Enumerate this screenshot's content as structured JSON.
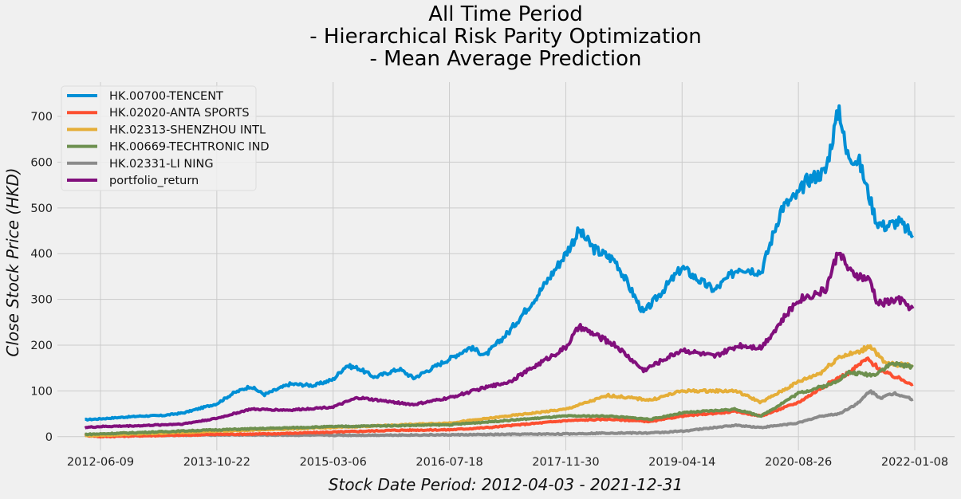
{
  "chart_data": {
    "type": "line",
    "title": [
      "All Time Period",
      "- Hierarchical Risk Parity Optimization",
      "- Mean Average Prediction"
    ],
    "xlabel": "Stock Date Period: 2012-04-03 - 2021-12-31",
    "ylabel": "Close Stock Price (HKD)",
    "x_start": "2012-04-03",
    "x_end": "2021-12-31",
    "x_ticks": [
      "2012-06-09",
      "2013-10-22",
      "2015-03-06",
      "2016-07-18",
      "2017-11-30",
      "2019-04-14",
      "2020-08-26",
      "2022-01-08"
    ],
    "y_ticks": [
      0,
      100,
      200,
      300,
      400,
      500,
      600,
      700
    ],
    "ylim": [
      -30,
      775
    ],
    "grid": true,
    "legend_position": "upper-left",
    "series": [
      {
        "name": "HK.00700-TENCENT",
        "color": "#008fd5",
        "points": [
          [
            "2012-04-03",
            37
          ],
          [
            "2012-06-09",
            39
          ],
          [
            "2012-09-01",
            42
          ],
          [
            "2012-12-01",
            45
          ],
          [
            "2013-03-01",
            46
          ],
          [
            "2013-06-01",
            52
          ],
          [
            "2013-10-22",
            72
          ],
          [
            "2014-01-01",
            95
          ],
          [
            "2014-03-15",
            110
          ],
          [
            "2014-05-15",
            92
          ],
          [
            "2014-09-01",
            115
          ],
          [
            "2014-12-15",
            112
          ],
          [
            "2015-03-06",
            125
          ],
          [
            "2015-05-01",
            155
          ],
          [
            "2015-06-20",
            150
          ],
          [
            "2015-09-01",
            130
          ],
          [
            "2015-12-15",
            148
          ],
          [
            "2016-02-15",
            128
          ],
          [
            "2016-07-18",
            170
          ],
          [
            "2016-10-15",
            195
          ],
          [
            "2016-12-20",
            178
          ],
          [
            "2017-04-01",
            230
          ],
          [
            "2017-08-01",
            310
          ],
          [
            "2017-11-30",
            400
          ],
          [
            "2018-01-26",
            450
          ],
          [
            "2018-04-01",
            410
          ],
          [
            "2018-07-01",
            385
          ],
          [
            "2018-10-30",
            270
          ],
          [
            "2018-12-20",
            300
          ],
          [
            "2019-04-14",
            370
          ],
          [
            "2019-07-01",
            340
          ],
          [
            "2019-09-01",
            320
          ],
          [
            "2019-12-15",
            370
          ],
          [
            "2020-03-19",
            360
          ],
          [
            "2020-06-15",
            500
          ],
          [
            "2020-08-26",
            530
          ],
          [
            "2020-10-01",
            560
          ],
          [
            "2020-12-20",
            580
          ],
          [
            "2021-02-17",
            720
          ],
          [
            "2021-03-20",
            620
          ],
          [
            "2021-05-15",
            600
          ],
          [
            "2021-07-28",
            470
          ],
          [
            "2021-09-01",
            460
          ],
          [
            "2021-11-01",
            470
          ],
          [
            "2021-12-31",
            440
          ]
        ]
      },
      {
        "name": "HK.02020-ANTA SPORTS",
        "color": "#fc4f30",
        "points": [
          [
            "2012-04-03",
            3
          ],
          [
            "2012-06-09",
            0
          ],
          [
            "2012-12-01",
            2
          ],
          [
            "2013-06-01",
            3
          ],
          [
            "2013-10-22",
            5
          ],
          [
            "2014-06-01",
            6
          ],
          [
            "2015-03-06",
            10
          ],
          [
            "2015-12-01",
            14
          ],
          [
            "2016-07-18",
            15
          ],
          [
            "2017-01-01",
            20
          ],
          [
            "2017-11-30",
            35
          ],
          [
            "2018-06-01",
            38
          ],
          [
            "2018-12-01",
            33
          ],
          [
            "2019-04-14",
            45
          ],
          [
            "2019-12-01",
            55
          ],
          [
            "2020-03-19",
            45
          ],
          [
            "2020-08-26",
            75
          ],
          [
            "2021-01-15",
            120
          ],
          [
            "2021-04-01",
            140
          ],
          [
            "2021-06-15",
            170
          ],
          [
            "2021-09-01",
            140
          ],
          [
            "2021-12-31",
            115
          ]
        ]
      },
      {
        "name": "HK.02313-SHENZHOU INTL",
        "color": "#e5ae38",
        "points": [
          [
            "2012-04-03",
            2
          ],
          [
            "2012-06-09",
            3
          ],
          [
            "2013-10-22",
            12
          ],
          [
            "2015-03-06",
            20
          ],
          [
            "2016-07-18",
            30
          ],
          [
            "2017-01-01",
            40
          ],
          [
            "2017-11-30",
            60
          ],
          [
            "2018-06-01",
            90
          ],
          [
            "2018-12-01",
            80
          ],
          [
            "2019-04-14",
            100
          ],
          [
            "2019-12-01",
            100
          ],
          [
            "2020-03-19",
            75
          ],
          [
            "2020-08-26",
            120
          ],
          [
            "2020-12-01",
            140
          ],
          [
            "2021-02-17",
            175
          ],
          [
            "2021-05-15",
            185
          ],
          [
            "2021-07-01",
            200
          ],
          [
            "2021-09-01",
            160
          ],
          [
            "2021-12-31",
            155
          ]
        ]
      },
      {
        "name": "HK.00669-TECHTRONIC IND",
        "color": "#6d904f",
        "points": [
          [
            "2012-04-03",
            5
          ],
          [
            "2012-06-09",
            6
          ],
          [
            "2013-10-22",
            15
          ],
          [
            "2015-03-06",
            22
          ],
          [
            "2016-07-18",
            26
          ],
          [
            "2017-11-30",
            45
          ],
          [
            "2018-06-01",
            45
          ],
          [
            "2018-12-01",
            38
          ],
          [
            "2019-04-14",
            52
          ],
          [
            "2019-12-01",
            60
          ],
          [
            "2020-03-19",
            45
          ],
          [
            "2020-08-26",
            95
          ],
          [
            "2021-01-15",
            115
          ],
          [
            "2021-04-01",
            140
          ],
          [
            "2021-07-15",
            135
          ],
          [
            "2021-10-01",
            160
          ],
          [
            "2021-12-31",
            152
          ]
        ]
      },
      {
        "name": "HK.02331-LI NING",
        "color": "#8b8b8b",
        "points": [
          [
            "2012-04-03",
            3
          ],
          [
            "2012-06-09",
            2
          ],
          [
            "2013-10-22",
            4
          ],
          [
            "2015-03-06",
            3
          ],
          [
            "2016-07-18",
            4
          ],
          [
            "2017-11-30",
            6
          ],
          [
            "2018-06-01",
            8
          ],
          [
            "2018-12-01",
            8
          ],
          [
            "2019-04-14",
            12
          ],
          [
            "2019-12-01",
            25
          ],
          [
            "2020-03-19",
            20
          ],
          [
            "2020-08-26",
            30
          ],
          [
            "2020-12-01",
            45
          ],
          [
            "2021-02-17",
            50
          ],
          [
            "2021-05-15",
            75
          ],
          [
            "2021-06-28",
            100
          ],
          [
            "2021-08-15",
            85
          ],
          [
            "2021-10-15",
            95
          ],
          [
            "2021-12-31",
            82
          ]
        ]
      },
      {
        "name": "portfolio_return",
        "color": "#810f7c",
        "points": [
          [
            "2012-04-03",
            20
          ],
          [
            "2012-06-09",
            22
          ],
          [
            "2012-12-01",
            24
          ],
          [
            "2013-06-01",
            28
          ],
          [
            "2013-10-22",
            40
          ],
          [
            "2014-03-15",
            60
          ],
          [
            "2014-09-01",
            58
          ],
          [
            "2015-03-06",
            65
          ],
          [
            "2015-06-20",
            85
          ],
          [
            "2016-02-15",
            70
          ],
          [
            "2016-07-18",
            85
          ],
          [
            "2016-12-01",
            105
          ],
          [
            "2017-04-01",
            120
          ],
          [
            "2017-11-30",
            195
          ],
          [
            "2018-01-26",
            240
          ],
          [
            "2018-07-01",
            200
          ],
          [
            "2018-10-30",
            145
          ],
          [
            "2019-04-14",
            190
          ],
          [
            "2019-09-01",
            175
          ],
          [
            "2019-12-15",
            200
          ],
          [
            "2020-03-19",
            195
          ],
          [
            "2020-08-26",
            300
          ],
          [
            "2020-12-20",
            320
          ],
          [
            "2021-02-17",
            410
          ],
          [
            "2021-04-01",
            360
          ],
          [
            "2021-07-01",
            340
          ],
          [
            "2021-08-01",
            290
          ],
          [
            "2021-11-01",
            300
          ],
          [
            "2021-12-31",
            280
          ]
        ]
      }
    ]
  }
}
